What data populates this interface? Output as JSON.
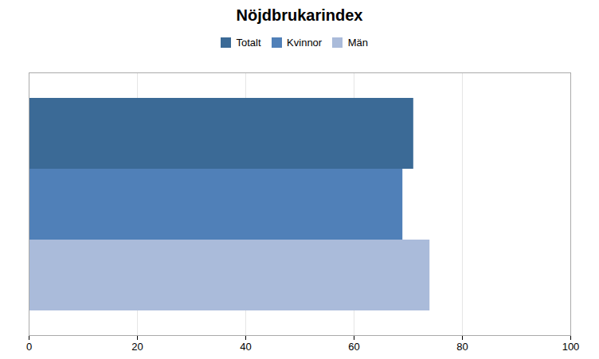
{
  "chart_data": {
    "type": "bar",
    "orientation": "horizontal",
    "title": "Nöjdbrukarindex",
    "categories": [
      "Totalt",
      "Kvinnor",
      "Män"
    ],
    "values": [
      71,
      69,
      74
    ],
    "colors": [
      "#3B6A96",
      "#5080B8",
      "#AABBDA"
    ],
    "xlim": [
      0,
      100
    ],
    "xticks": [
      0,
      20,
      40,
      60,
      80,
      100
    ],
    "grid": true,
    "legend": "top",
    "tick_labels": "x"
  }
}
